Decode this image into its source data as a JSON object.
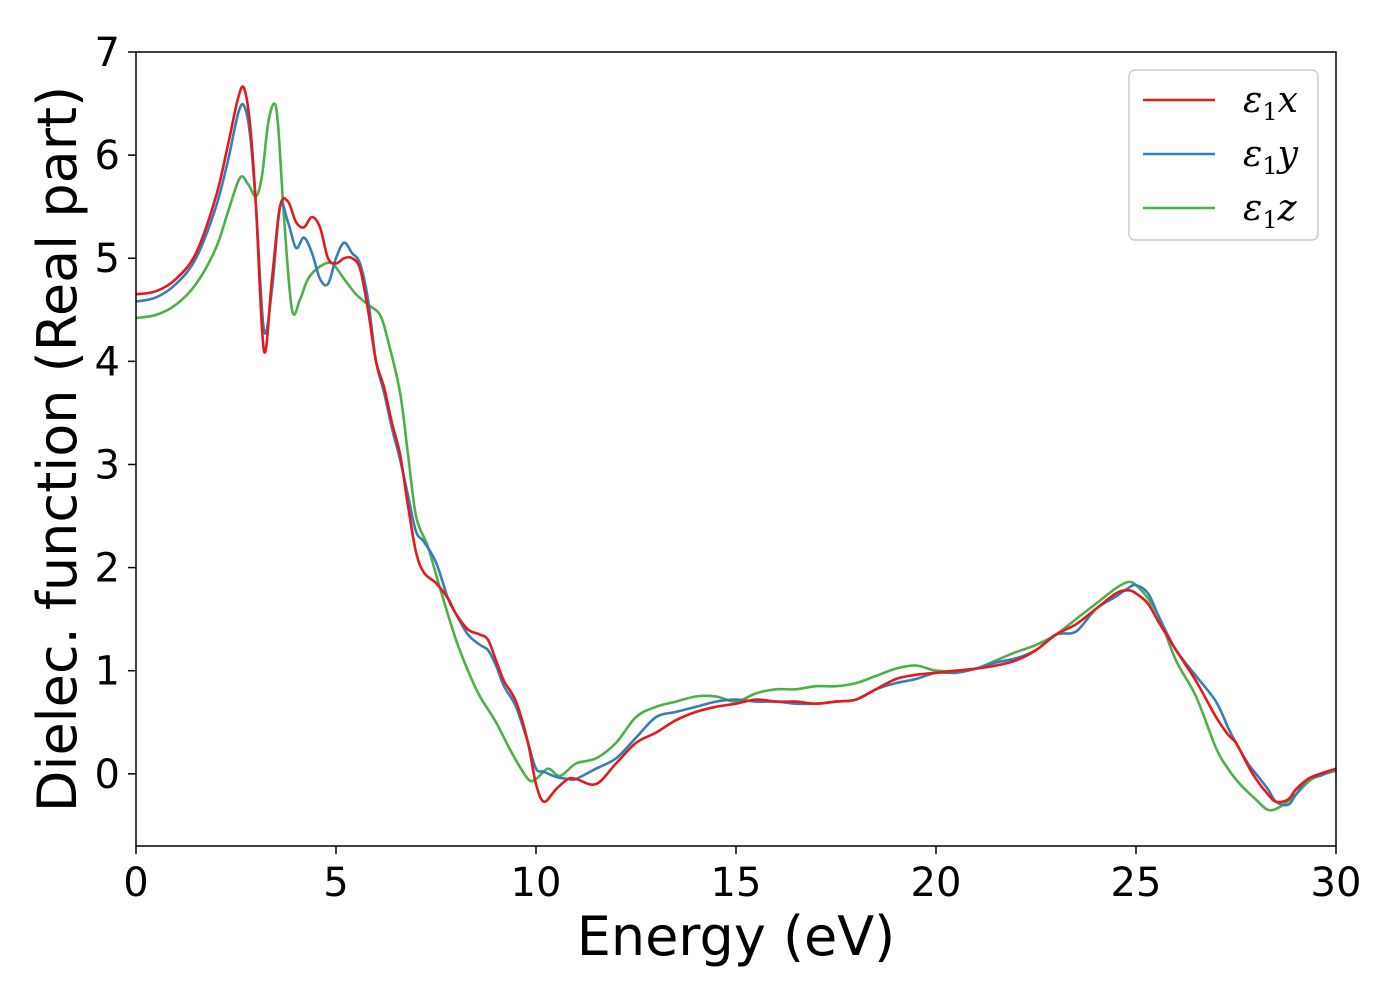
{
  "chart_data": {
    "type": "line",
    "xlabel": "Energy (eV)",
    "ylabel": "Dielec. function (Real part)",
    "xlim": [
      0,
      30
    ],
    "ylim": [
      -0.7,
      7
    ],
    "xticks": [
      0,
      5,
      10,
      15,
      20,
      25,
      30
    ],
    "yticks": [
      0,
      1,
      2,
      3,
      4,
      5,
      6,
      7
    ],
    "grid": false,
    "legend_position": "top-right",
    "series": [
      {
        "name": "ε1x",
        "label_base": "ε",
        "label_sub": "1",
        "label_var": "x",
        "color": "#e41a1c",
        "x": [
          0,
          0.5,
          1,
          1.5,
          2,
          2.3,
          2.55,
          2.7,
          2.85,
          3,
          3.2,
          3.4,
          3.6,
          3.8,
          4.0,
          4.2,
          4.4,
          4.6,
          4.8,
          5.0,
          5.2,
          5.4,
          5.6,
          5.8,
          6.0,
          6.2,
          6.4,
          6.6,
          6.8,
          7.0,
          7.2,
          7.5,
          7.8,
          8.0,
          8.3,
          8.6,
          8.8,
          9.0,
          9.2,
          9.5,
          9.8,
          10.0,
          10.2,
          10.5,
          10.8,
          11.0,
          11.5,
          12.0,
          12.5,
          13.0,
          13.5,
          14.0,
          14.5,
          15.0,
          15.5,
          16.0,
          16.5,
          17.0,
          17.5,
          18.0,
          18.5,
          19.0,
          19.5,
          20.0,
          20.5,
          21.0,
          21.5,
          22.0,
          22.5,
          23.0,
          23.5,
          24.0,
          24.5,
          24.8,
          25.0,
          25.3,
          25.6,
          26.0,
          26.5,
          27.0,
          27.3,
          27.5,
          27.8,
          28.0,
          28.3,
          28.5,
          28.8,
          29.0,
          29.3,
          29.6,
          30.0
        ],
        "y": [
          4.65,
          4.68,
          4.8,
          5.05,
          5.6,
          6.1,
          6.55,
          6.65,
          6.3,
          5.5,
          4.1,
          4.8,
          5.5,
          5.55,
          5.35,
          5.3,
          5.4,
          5.3,
          5.0,
          4.95,
          5.0,
          5.0,
          4.9,
          4.5,
          4.0,
          3.75,
          3.4,
          3.1,
          2.6,
          2.15,
          1.95,
          1.85,
          1.7,
          1.55,
          1.4,
          1.35,
          1.3,
          1.1,
          0.9,
          0.7,
          0.3,
          -0.1,
          -0.27,
          -0.15,
          -0.05,
          -0.05,
          -0.1,
          0.1,
          0.3,
          0.4,
          0.52,
          0.6,
          0.65,
          0.68,
          0.72,
          0.7,
          0.7,
          0.68,
          0.7,
          0.72,
          0.82,
          0.92,
          0.96,
          0.98,
          1.0,
          1.02,
          1.05,
          1.1,
          1.2,
          1.35,
          1.45,
          1.6,
          1.75,
          1.78,
          1.75,
          1.65,
          1.45,
          1.2,
          0.9,
          0.55,
          0.38,
          0.3,
          0.08,
          -0.05,
          -0.2,
          -0.27,
          -0.25,
          -0.15,
          -0.05,
          0.0,
          0.05
        ]
      },
      {
        "name": "ε1y",
        "label_base": "ε",
        "label_sub": "1",
        "label_var": "y",
        "color": "#377eb8",
        "x": [
          0,
          0.5,
          1,
          1.5,
          2,
          2.3,
          2.55,
          2.7,
          2.85,
          3,
          3.2,
          3.4,
          3.6,
          3.8,
          4.0,
          4.2,
          4.4,
          4.6,
          4.8,
          5.0,
          5.2,
          5.4,
          5.6,
          5.8,
          6.0,
          6.2,
          6.4,
          6.6,
          6.8,
          7.0,
          7.2,
          7.5,
          7.8,
          8.0,
          8.3,
          8.6,
          8.8,
          9.0,
          9.2,
          9.5,
          9.8,
          10.0,
          10.2,
          10.5,
          10.8,
          11.0,
          11.5,
          12.0,
          12.5,
          13.0,
          13.5,
          14.0,
          14.5,
          15.0,
          15.5,
          16.0,
          16.5,
          17.0,
          17.5,
          18.0,
          18.5,
          19.0,
          19.5,
          20.0,
          20.5,
          21.0,
          21.5,
          22.0,
          22.5,
          23.0,
          23.5,
          24.0,
          24.5,
          24.8,
          25.0,
          25.3,
          25.6,
          26.0,
          26.5,
          27.0,
          27.3,
          27.5,
          27.8,
          28.0,
          28.3,
          28.5,
          28.8,
          29.0,
          29.3,
          29.6,
          30.0
        ],
        "y": [
          4.58,
          4.62,
          4.75,
          5.0,
          5.5,
          5.95,
          6.4,
          6.48,
          6.2,
          5.5,
          4.3,
          4.7,
          5.5,
          5.35,
          5.1,
          5.2,
          5.05,
          4.8,
          4.75,
          5.0,
          5.15,
          5.05,
          4.95,
          4.6,
          4.0,
          3.7,
          3.35,
          3.05,
          2.7,
          2.35,
          2.25,
          2.05,
          1.7,
          1.55,
          1.35,
          1.25,
          1.2,
          1.05,
          0.85,
          0.65,
          0.3,
          0.05,
          0.02,
          -0.03,
          -0.05,
          -0.05,
          0.05,
          0.15,
          0.35,
          0.55,
          0.6,
          0.65,
          0.7,
          0.72,
          0.7,
          0.7,
          0.68,
          0.68,
          0.7,
          0.72,
          0.82,
          0.88,
          0.92,
          0.98,
          0.98,
          1.02,
          1.08,
          1.12,
          1.2,
          1.35,
          1.38,
          1.6,
          1.72,
          1.8,
          1.83,
          1.75,
          1.5,
          1.2,
          0.95,
          0.7,
          0.45,
          0.3,
          0.1,
          0.0,
          -0.15,
          -0.27,
          -0.3,
          -0.2,
          -0.05,
          -0.02,
          0.05
        ]
      },
      {
        "name": "ε1z",
        "label_base": "ε",
        "label_sub": "1",
        "label_var": "z",
        "color": "#4daf4a",
        "x": [
          0,
          0.5,
          1,
          1.5,
          2,
          2.3,
          2.6,
          2.8,
          3.0,
          3.15,
          3.3,
          3.45,
          3.55,
          3.7,
          3.9,
          4.1,
          4.3,
          4.6,
          4.9,
          5.2,
          5.5,
          5.8,
          6.1,
          6.3,
          6.6,
          6.8,
          7.0,
          7.3,
          7.6,
          8.0,
          8.3,
          8.6,
          9.0,
          9.4,
          9.8,
          10.0,
          10.3,
          10.6,
          11.0,
          11.5,
          12.0,
          12.5,
          13.0,
          13.5,
          14.0,
          14.5,
          15.0,
          15.5,
          16.0,
          16.5,
          17.0,
          17.5,
          18.0,
          18.5,
          19.0,
          19.5,
          20.0,
          20.5,
          21.0,
          21.5,
          22.0,
          22.5,
          23.0,
          23.5,
          24.0,
          24.5,
          24.8,
          25.0,
          25.3,
          25.6,
          26.0,
          26.5,
          27.0,
          27.3,
          27.6,
          28.0,
          28.3,
          28.6,
          29.0,
          29.4,
          30.0
        ],
        "y": [
          4.42,
          4.45,
          4.55,
          4.75,
          5.1,
          5.45,
          5.78,
          5.72,
          5.6,
          5.8,
          6.3,
          6.5,
          6.3,
          5.4,
          4.5,
          4.6,
          4.8,
          4.92,
          4.95,
          4.8,
          4.65,
          4.55,
          4.45,
          4.2,
          3.7,
          3.1,
          2.5,
          2.2,
          1.8,
          1.3,
          1.0,
          0.75,
          0.5,
          0.2,
          -0.05,
          -0.05,
          0.05,
          -0.02,
          0.1,
          0.15,
          0.3,
          0.55,
          0.65,
          0.7,
          0.75,
          0.75,
          0.7,
          0.78,
          0.82,
          0.82,
          0.85,
          0.85,
          0.88,
          0.95,
          1.02,
          1.05,
          1.0,
          1.0,
          1.02,
          1.1,
          1.18,
          1.25,
          1.35,
          1.5,
          1.65,
          1.8,
          1.86,
          1.83,
          1.7,
          1.5,
          1.1,
          0.75,
          0.25,
          0.05,
          -0.1,
          -0.25,
          -0.35,
          -0.32,
          -0.2,
          -0.05,
          0.03
        ]
      }
    ]
  }
}
